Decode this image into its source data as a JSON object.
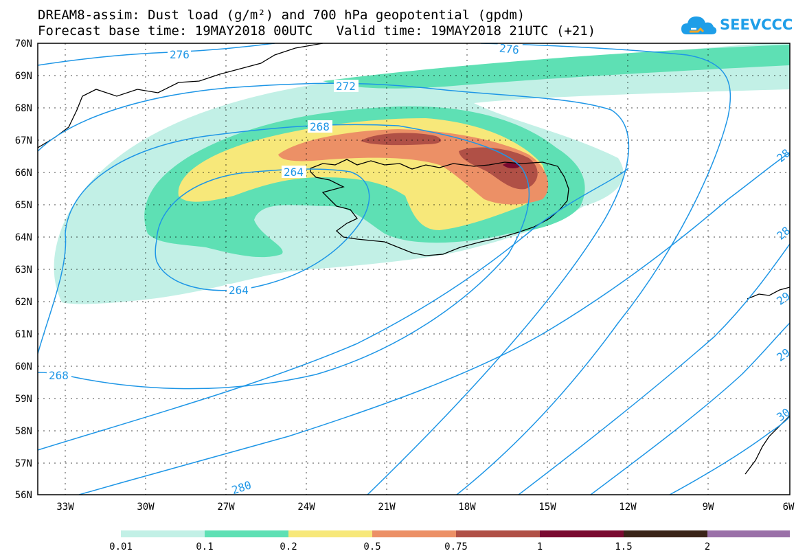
{
  "title": {
    "line1": "DREAM8-assim: Dust load (g/m²) and 700 hPa geopotential (gpdm)",
    "line2": "Forecast base time: 19MAY2018 00UTC   Valid time: 19MAY2018 21UTC (+21)"
  },
  "logo": {
    "text": "SEEVCCC",
    "icon": "cloud-icon"
  },
  "map": {
    "lat_labels": [
      "70N",
      "69N",
      "68N",
      "67N",
      "66N",
      "65N",
      "64N",
      "63N",
      "62N",
      "61N",
      "60N",
      "59N",
      "58N",
      "57N",
      "56N"
    ],
    "lon_labels": [
      "33W",
      "30W",
      "27W",
      "24W",
      "21W",
      "18W",
      "15W",
      "12W",
      "9W",
      "6W"
    ],
    "contour_labels": [
      "276",
      "276",
      "272",
      "268",
      "264",
      "264",
      "268",
      "280",
      "28",
      "28",
      "29",
      "29",
      "30"
    ],
    "colors": {
      "contour": "#1e96e6",
      "coast": "#000000",
      "grid": "#000000"
    }
  },
  "legend": {
    "labels": [
      "0.01",
      "0.1",
      "0.2",
      "0.5",
      "0.75",
      "1",
      "1.5",
      "2"
    ],
    "colors": [
      "#c2f0e6",
      "#5ee0b4",
      "#f7e87a",
      "#ec9066",
      "#b05046",
      "#7a0a30",
      "#3a2418",
      "#9a70a8"
    ]
  }
}
